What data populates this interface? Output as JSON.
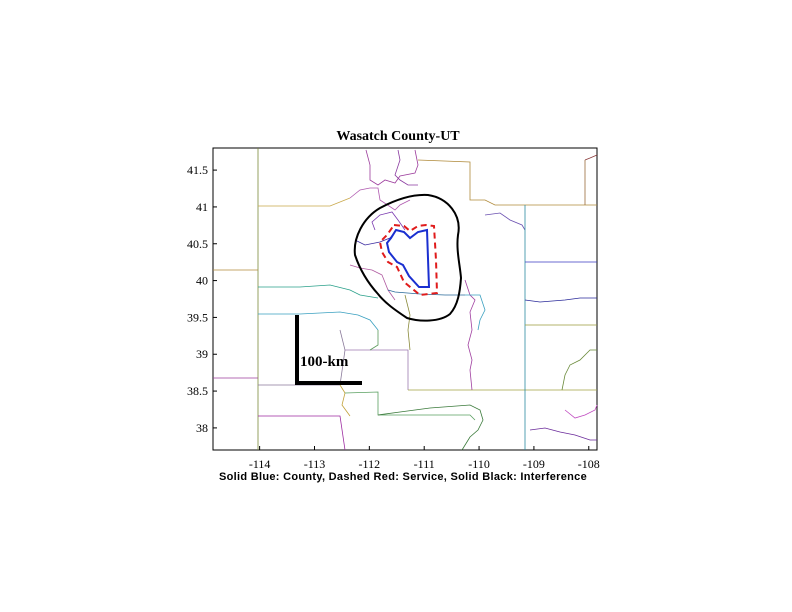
{
  "map": {
    "title": "Wasatch County-UT",
    "caption": "Solid Blue: County, Dashed Red: Service, Solid Black: Interference",
    "scale_label": "100-km",
    "x_ticks": [
      "-114",
      "-113",
      "-112",
      "-111",
      "-110",
      "-109",
      "-108"
    ],
    "y_ticks": [
      "41.5",
      "41",
      "40.5",
      "40",
      "39.5",
      "39",
      "38.5",
      "38"
    ],
    "lon_range": [
      -114.85,
      -107.85
    ],
    "lat_range": [
      37.7,
      41.8
    ],
    "colors": {
      "county": "#1a2fd0",
      "service": "#e01b1b",
      "interference": "#000000"
    }
  }
}
